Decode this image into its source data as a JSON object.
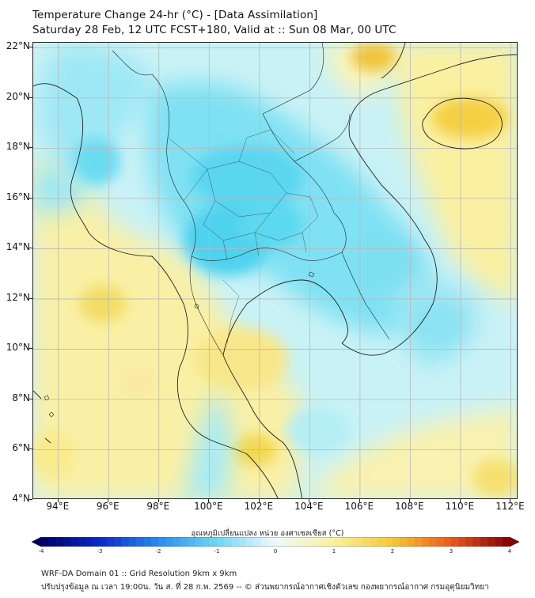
{
  "header": {
    "title_line1": "Temperature Change 24-hr (°C) - [Data Assimilation]",
    "title_line2": "Saturday 28 Feb, 12 UTC FCST+180, Valid at :: Sun 08 Mar, 00 UTC"
  },
  "map": {
    "lat_labels": [
      "22°N",
      "20°N",
      "18°N",
      "16°N",
      "14°N",
      "12°N",
      "10°N",
      "8°N",
      "6°N",
      "4°N"
    ],
    "lon_labels": [
      "94°E",
      "96°E",
      "98°E",
      "100°E",
      "102°E",
      "104°E",
      "106°E",
      "108°E",
      "110°E",
      "112°E"
    ],
    "lat_range": [
      4,
      22.2
    ],
    "lon_range": [
      93,
      112.3
    ],
    "colors": {
      "land_outline": "#222222",
      "grid": "#b8b8b8",
      "cold_strong": "#5ad6f0",
      "cold": "#a8ecf6",
      "neutral": "#eef9f0",
      "warm": "#fbf3a8",
      "warm_strong": "#f6d640"
    }
  },
  "colorbar": {
    "label": "อุณหภูมิเปลี่ยนแปลง หน่วย องศาเซลเซียส (°C)",
    "ticks": [
      "-4",
      "-3",
      "-2",
      "-1",
      "0",
      "1",
      "2",
      "3",
      "4"
    ],
    "range": [
      -4,
      4
    ]
  },
  "footer": {
    "line1": "WRF-DA Domain 01 :: Grid Resolution 9km x 9km",
    "line2": "ปรับปรุงข้อมูล ณ เวลา 19:00น. วัน ส. ที่ 28 ก.พ. 2569 -- © ส่วนพยากรณ์อากาศเชิงตัวเลข กองพยากรณ์อากาศ กรมอุตุนิยมวิทยา"
  }
}
